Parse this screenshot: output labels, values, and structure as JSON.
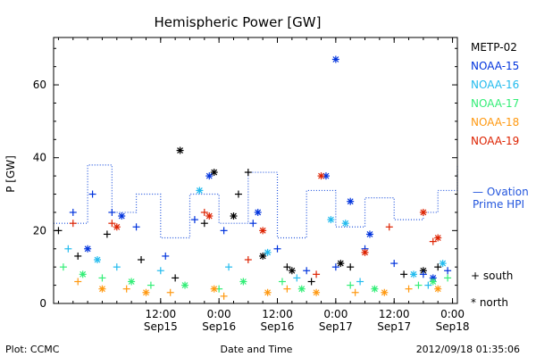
{
  "chart_data": {
    "type": "scatter",
    "title": "Hemispheric Power [GW]",
    "ylabel": "P [GW]",
    "xlabel": "Date and Time",
    "ylim": [
      0,
      73
    ],
    "yticks": [
      0,
      20,
      40,
      60
    ],
    "xrange": [
      "2012-09-14 14:00",
      "2012-09-18 01:00"
    ],
    "xtick_labels": [
      {
        "time": "12:00",
        "date": "Sep15",
        "t": "2012-09-15 12:00"
      },
      {
        "time": "0:00",
        "date": "Sep16",
        "t": "2012-09-16 00:00"
      },
      {
        "time": "12:00",
        "date": "Sep16",
        "t": "2012-09-16 12:00"
      },
      {
        "time": "0:00",
        "date": "Sep17",
        "t": "2012-09-17 00:00"
      },
      {
        "time": "12:00",
        "date": "Sep17",
        "t": "2012-09-17 12:00"
      },
      {
        "time": "0:00",
        "date": "Sep18",
        "t": "2012-09-18 00:00"
      }
    ],
    "legend_position": "right, outside plot",
    "series": [
      {
        "name": "METP-02",
        "color": "#000000",
        "south": [
          [
            "2012-09-14 15:00",
            20
          ],
          [
            "2012-09-14 19:00",
            13
          ],
          [
            "2012-09-15 01:00",
            19
          ],
          [
            "2012-09-15 08:00",
            12
          ],
          [
            "2012-09-15 15:00",
            7
          ],
          [
            "2012-09-15 21:00",
            22
          ],
          [
            "2012-09-16 04:00",
            30
          ],
          [
            "2012-09-16 06:00",
            36
          ],
          [
            "2012-09-16 14:00",
            10
          ],
          [
            "2012-09-16 19:00",
            6
          ],
          [
            "2012-09-17 03:00",
            10
          ],
          [
            "2012-09-17 14:00",
            8
          ],
          [
            "2012-09-17 21:00",
            10
          ]
        ],
        "north": [
          [
            "2012-09-15 16:00",
            42
          ],
          [
            "2012-09-15 23:00",
            36
          ],
          [
            "2012-09-16 03:00",
            24
          ],
          [
            "2012-09-16 09:00",
            13
          ],
          [
            "2012-09-16 15:00",
            9
          ],
          [
            "2012-09-17 01:00",
            11
          ],
          [
            "2012-09-17 18:00",
            9
          ]
        ]
      },
      {
        "name": "NOAA-15",
        "color": "#0033dd",
        "south": [
          [
            "2012-09-14 18:00",
            25
          ],
          [
            "2012-09-14 22:00",
            30
          ],
          [
            "2012-09-15 02:00",
            25
          ],
          [
            "2012-09-15 07:00",
            21
          ],
          [
            "2012-09-15 13:00",
            13
          ],
          [
            "2012-09-15 19:00",
            23
          ],
          [
            "2012-09-16 01:00",
            20
          ],
          [
            "2012-09-16 07:00",
            22
          ],
          [
            "2012-09-16 12:00",
            15
          ],
          [
            "2012-09-16 18:00",
            9
          ],
          [
            "2012-09-17 00:00",
            10
          ],
          [
            "2012-09-17 06:00",
            15
          ],
          [
            "2012-09-17 12:00",
            11
          ],
          [
            "2012-09-17 18:00",
            8
          ],
          [
            "2012-09-17 23:00",
            9
          ]
        ],
        "north": [
          [
            "2012-09-14 21:00",
            15
          ],
          [
            "2012-09-15 04:00",
            24
          ],
          [
            "2012-09-15 22:00",
            35
          ],
          [
            "2012-09-16 08:00",
            25
          ],
          [
            "2012-09-16 22:00",
            35
          ],
          [
            "2012-09-17 00:00",
            67
          ],
          [
            "2012-09-17 03:00",
            28
          ],
          [
            "2012-09-17 07:00",
            19
          ],
          [
            "2012-09-17 20:00",
            7
          ]
        ]
      },
      {
        "name": "NOAA-16",
        "color": "#22bbee",
        "south": [
          [
            "2012-09-14 17:00",
            15
          ],
          [
            "2012-09-15 03:00",
            10
          ],
          [
            "2012-09-15 12:00",
            9
          ],
          [
            "2012-09-16 02:00",
            10
          ],
          [
            "2012-09-16 16:00",
            7
          ],
          [
            "2012-09-17 05:00",
            6
          ],
          [
            "2012-09-17 19:00",
            5
          ]
        ],
        "north": [
          [
            "2012-09-14 23:00",
            12
          ],
          [
            "2012-09-15 20:00",
            31
          ],
          [
            "2012-09-16 10:00",
            14
          ],
          [
            "2012-09-16 23:00",
            23
          ],
          [
            "2012-09-17 02:00",
            22
          ],
          [
            "2012-09-17 16:00",
            8
          ],
          [
            "2012-09-17 22:00",
            11
          ]
        ]
      },
      {
        "name": "NOAA-17",
        "color": "#33ee77",
        "south": [
          [
            "2012-09-14 16:00",
            10
          ],
          [
            "2012-09-15 00:00",
            7
          ],
          [
            "2012-09-15 10:00",
            5
          ],
          [
            "2012-09-16 00:00",
            4
          ],
          [
            "2012-09-16 13:00",
            6
          ],
          [
            "2012-09-17 03:00",
            5
          ],
          [
            "2012-09-17 17:00",
            5
          ],
          [
            "2012-09-17 23:00",
            7
          ]
        ],
        "north": [
          [
            "2012-09-14 20:00",
            8
          ],
          [
            "2012-09-15 06:00",
            6
          ],
          [
            "2012-09-15 17:00",
            5
          ],
          [
            "2012-09-16 05:00",
            6
          ],
          [
            "2012-09-16 17:00",
            4
          ],
          [
            "2012-09-17 08:00",
            4
          ],
          [
            "2012-09-17 20:00",
            6
          ]
        ]
      },
      {
        "name": "NOAA-18",
        "color": "#ff9911",
        "south": [
          [
            "2012-09-14 19:00",
            6
          ],
          [
            "2012-09-15 05:00",
            4
          ],
          [
            "2012-09-15 14:00",
            3
          ],
          [
            "2012-09-16 01:00",
            2
          ],
          [
            "2012-09-16 14:00",
            4
          ],
          [
            "2012-09-17 04:00",
            3
          ],
          [
            "2012-09-17 15:00",
            4
          ]
        ],
        "north": [
          [
            "2012-09-15 00:00",
            4
          ],
          [
            "2012-09-15 09:00",
            3
          ],
          [
            "2012-09-15 23:00",
            4
          ],
          [
            "2012-09-16 10:00",
            3
          ],
          [
            "2012-09-16 20:00",
            3
          ],
          [
            "2012-09-17 10:00",
            3
          ],
          [
            "2012-09-17 21:00",
            4
          ]
        ]
      },
      {
        "name": "NOAA-19",
        "color": "#dd2200",
        "south": [
          [
            "2012-09-14 18:00",
            22
          ],
          [
            "2012-09-15 02:00",
            22
          ],
          [
            "2012-09-15 21:00",
            25
          ],
          [
            "2012-09-16 06:00",
            12
          ],
          [
            "2012-09-16 20:00",
            8
          ],
          [
            "2012-09-17 11:00",
            21
          ],
          [
            "2012-09-17 20:00",
            17
          ]
        ],
        "north": [
          [
            "2012-09-15 03:00",
            21
          ],
          [
            "2012-09-15 22:00",
            24
          ],
          [
            "2012-09-16 09:00",
            20
          ],
          [
            "2012-09-16 21:00",
            35
          ],
          [
            "2012-09-17 06:00",
            14
          ],
          [
            "2012-09-17 18:00",
            25
          ],
          [
            "2012-09-17 21:00",
            18
          ]
        ]
      }
    ],
    "ovation_line": {
      "name": "Ovation Prime HPI",
      "label_lines": [
        "— Ovation",
        "Prime HPI"
      ],
      "color": "#2255dd",
      "style": "dotted step",
      "points": [
        [
          "2012-09-14 14:00",
          22
        ],
        [
          "2012-09-14 21:00",
          38
        ],
        [
          "2012-09-15 02:00",
          25
        ],
        [
          "2012-09-15 07:00",
          30
        ],
        [
          "2012-09-15 12:00",
          18
        ],
        [
          "2012-09-15 18:00",
          30
        ],
        [
          "2012-09-16 00:00",
          22
        ],
        [
          "2012-09-16 06:00",
          36
        ],
        [
          "2012-09-16 12:00",
          18
        ],
        [
          "2012-09-16 18:00",
          31
        ],
        [
          "2012-09-17 00:00",
          21
        ],
        [
          "2012-09-17 06:00",
          29
        ],
        [
          "2012-09-17 12:00",
          23
        ],
        [
          "2012-09-17 18:00",
          25
        ],
        [
          "2012-09-17 21:00",
          31
        ],
        [
          "2012-09-18 01:00",
          38
        ]
      ]
    },
    "marker_key": [
      {
        "symbol": "+",
        "label": "south"
      },
      {
        "symbol": "*",
        "label": "north"
      }
    ]
  },
  "footer": {
    "left": "Plot: CCMC",
    "center": "Date and Time",
    "right": "2012/09/18 01:35:06"
  }
}
